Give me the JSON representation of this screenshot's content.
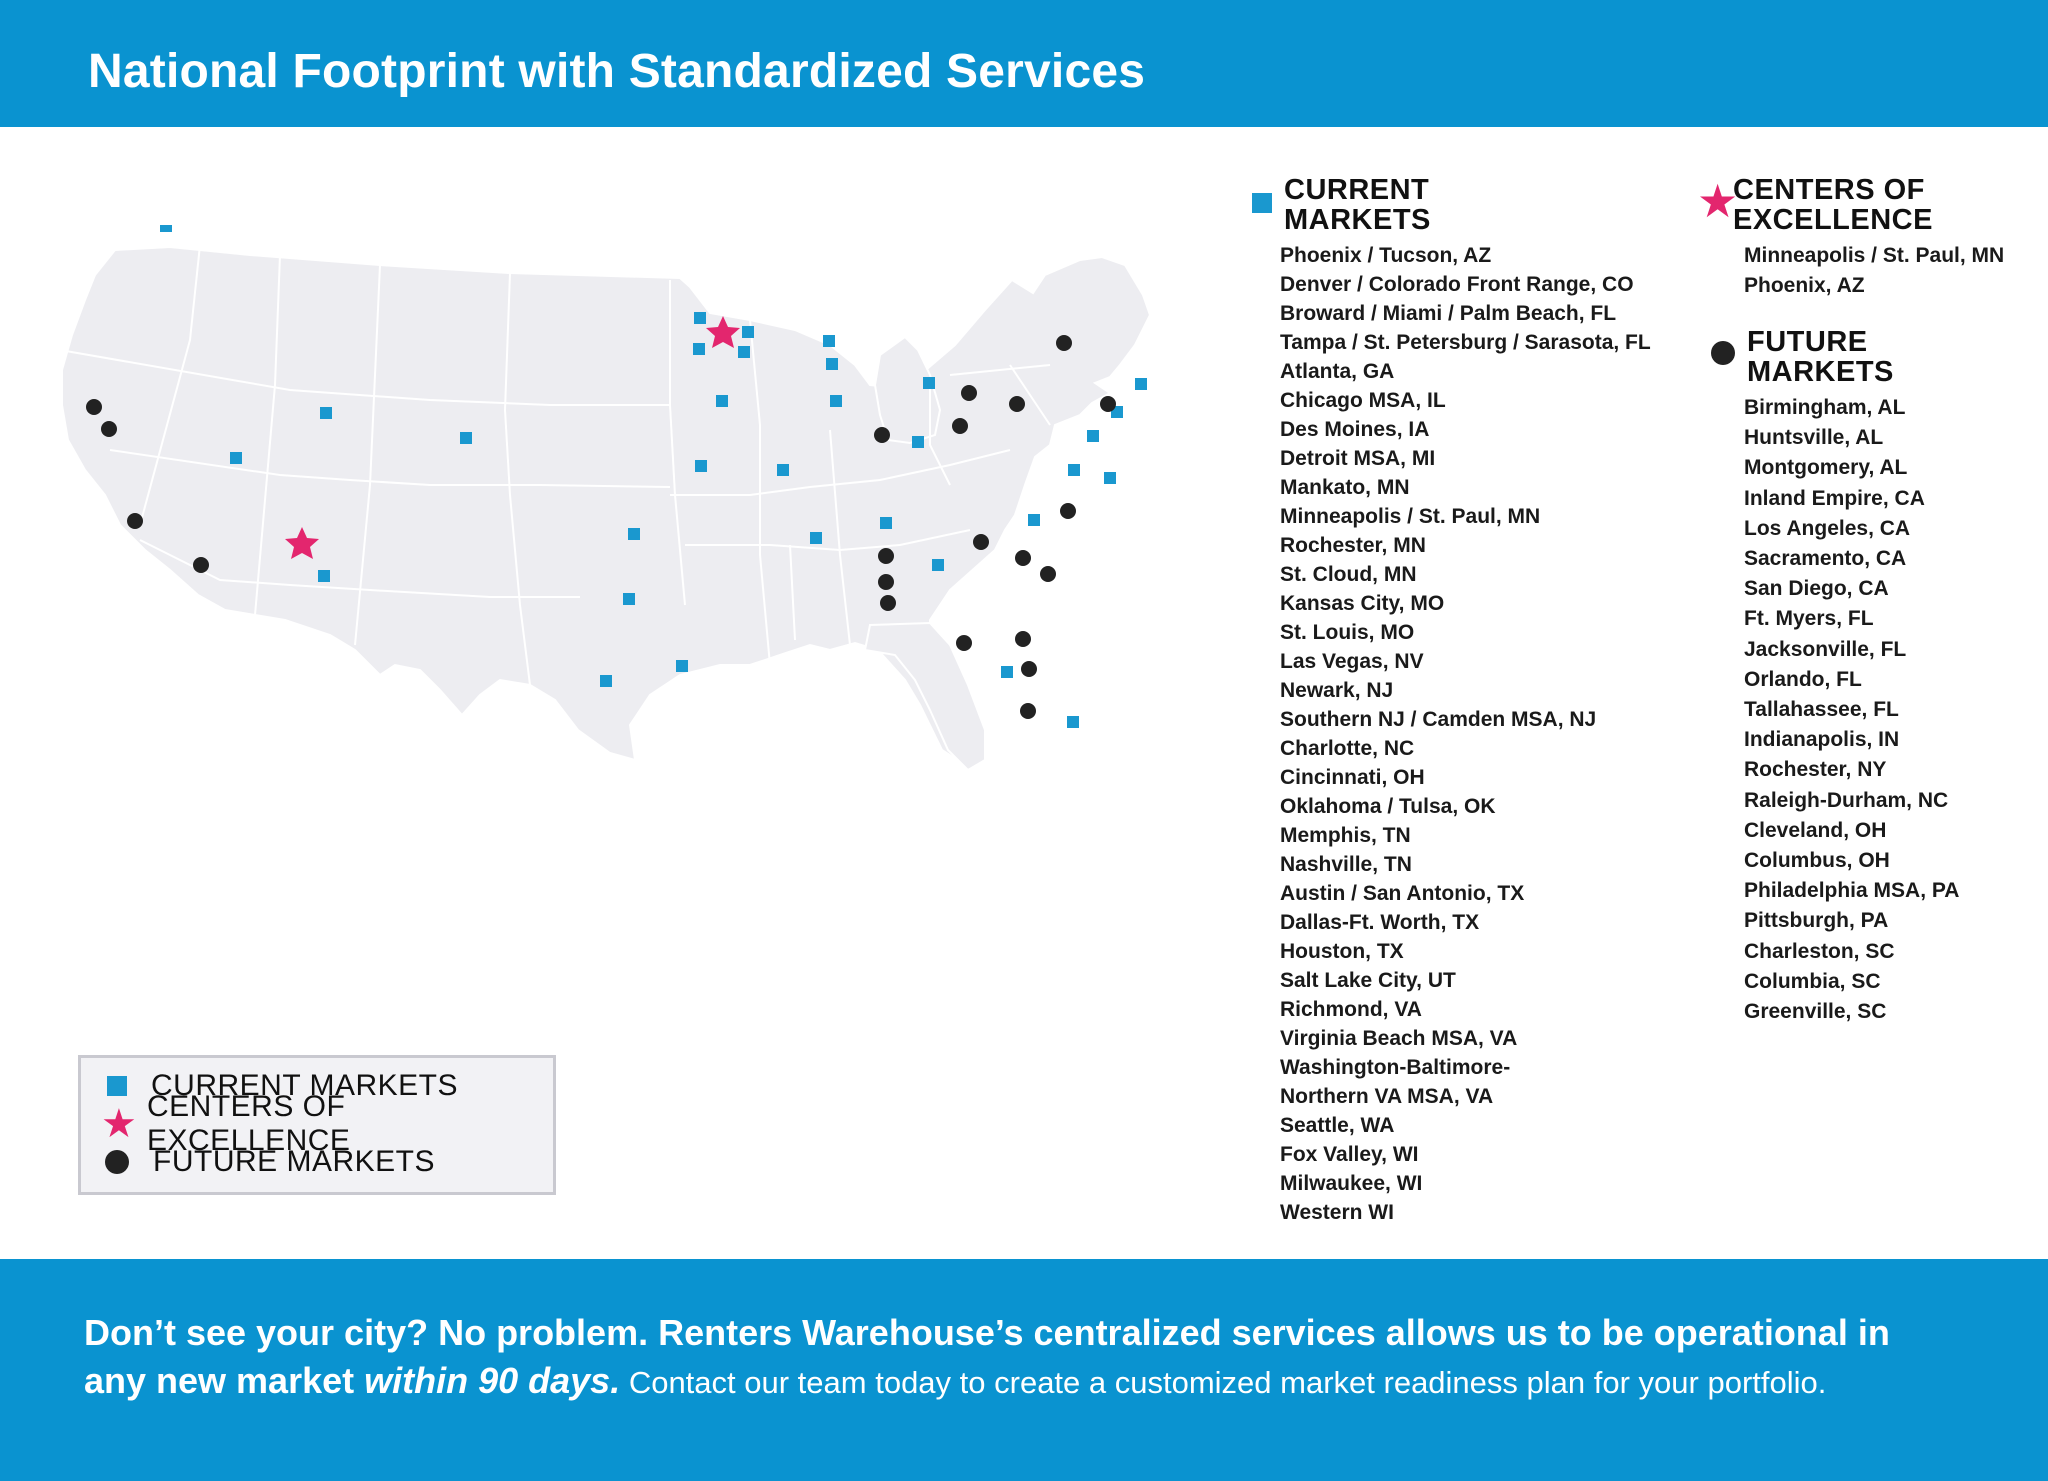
{
  "header": {
    "title": "National Footprint with Standardized Services"
  },
  "colors": {
    "brand_blue": "#0a93d0",
    "current": "#1a98cf",
    "center": "#e3266e",
    "future": "#222222"
  },
  "legend": {
    "current": "CURRENT MARKETS",
    "centers": "CENTERS OF EXCELLENCE",
    "future": "FUTURE MARKETS"
  },
  "current_markets": {
    "title_line1": "CURRENT",
    "title_line2": "MARKETS",
    "items": [
      "Phoenix / Tucson, AZ",
      "Denver / Colorado Front Range, CO",
      "Broward / Miami / Palm Beach, FL",
      "Tampa / St. Petersburg / Sarasota, FL",
      "Atlanta, GA",
      "Chicago MSA, IL",
      "Des Moines, IA",
      "Detroit MSA, MI",
      "Mankato, MN",
      "Minneapolis / St. Paul, MN",
      "Rochester, MN",
      "St. Cloud, MN",
      "Kansas City, MO",
      "St. Louis, MO",
      "Las Vegas, NV",
      "Newark, NJ",
      "Southern NJ / Camden MSA, NJ",
      "Charlotte, NC",
      "Cincinnati, OH",
      "Oklahoma / Tulsa, OK",
      "Memphis, TN",
      "Nashville, TN",
      "Austin / San Antonio, TX",
      "Dallas-Ft. Worth, TX",
      "Houston, TX",
      "Salt Lake City, UT",
      "Richmond, VA",
      "Virginia Beach MSA, VA",
      "Washington-Baltimore-",
      "Northern VA MSA, VA",
      "Seattle, WA",
      "Fox Valley, WI",
      "Milwaukee, WI",
      "Western WI"
    ]
  },
  "centers_of_excellence": {
    "title_line1": "CENTERS OF",
    "title_line2": "EXCELLENCE",
    "items": [
      "Minneapolis / St. Paul, MN",
      "Phoenix, AZ"
    ]
  },
  "future_markets": {
    "title_line1": "FUTURE",
    "title_line2": "MARKETS",
    "items": [
      "Birmingham, AL",
      "Huntsville, AL",
      "Montgomery, AL",
      "Inland Empire, CA",
      "Los Angeles, CA",
      "Sacramento, CA",
      "San Diego, CA",
      "Ft. Myers, FL",
      "Jacksonville, FL",
      "Orlando, FL",
      "Tallahassee, FL",
      "Indianapolis, IN",
      "Rochester, NY",
      "Raleigh-Durham, NC",
      "Cleveland, OH",
      "Columbus, OH",
      "Philadelphia MSA, PA",
      "Pittsburgh, PA",
      "Charleston, SC",
      "Columbia, SC",
      "Greenville, SC"
    ]
  },
  "footer": {
    "line1": "Don’t see your city? No problem. Renters Warehouse’s centralized services allows us to be operational in",
    "line2_a": "any new market ",
    "line2_b": "within 90 days.",
    "line2_c": " Contact our team today to create a customized market readiness plan for your portfolio."
  }
}
